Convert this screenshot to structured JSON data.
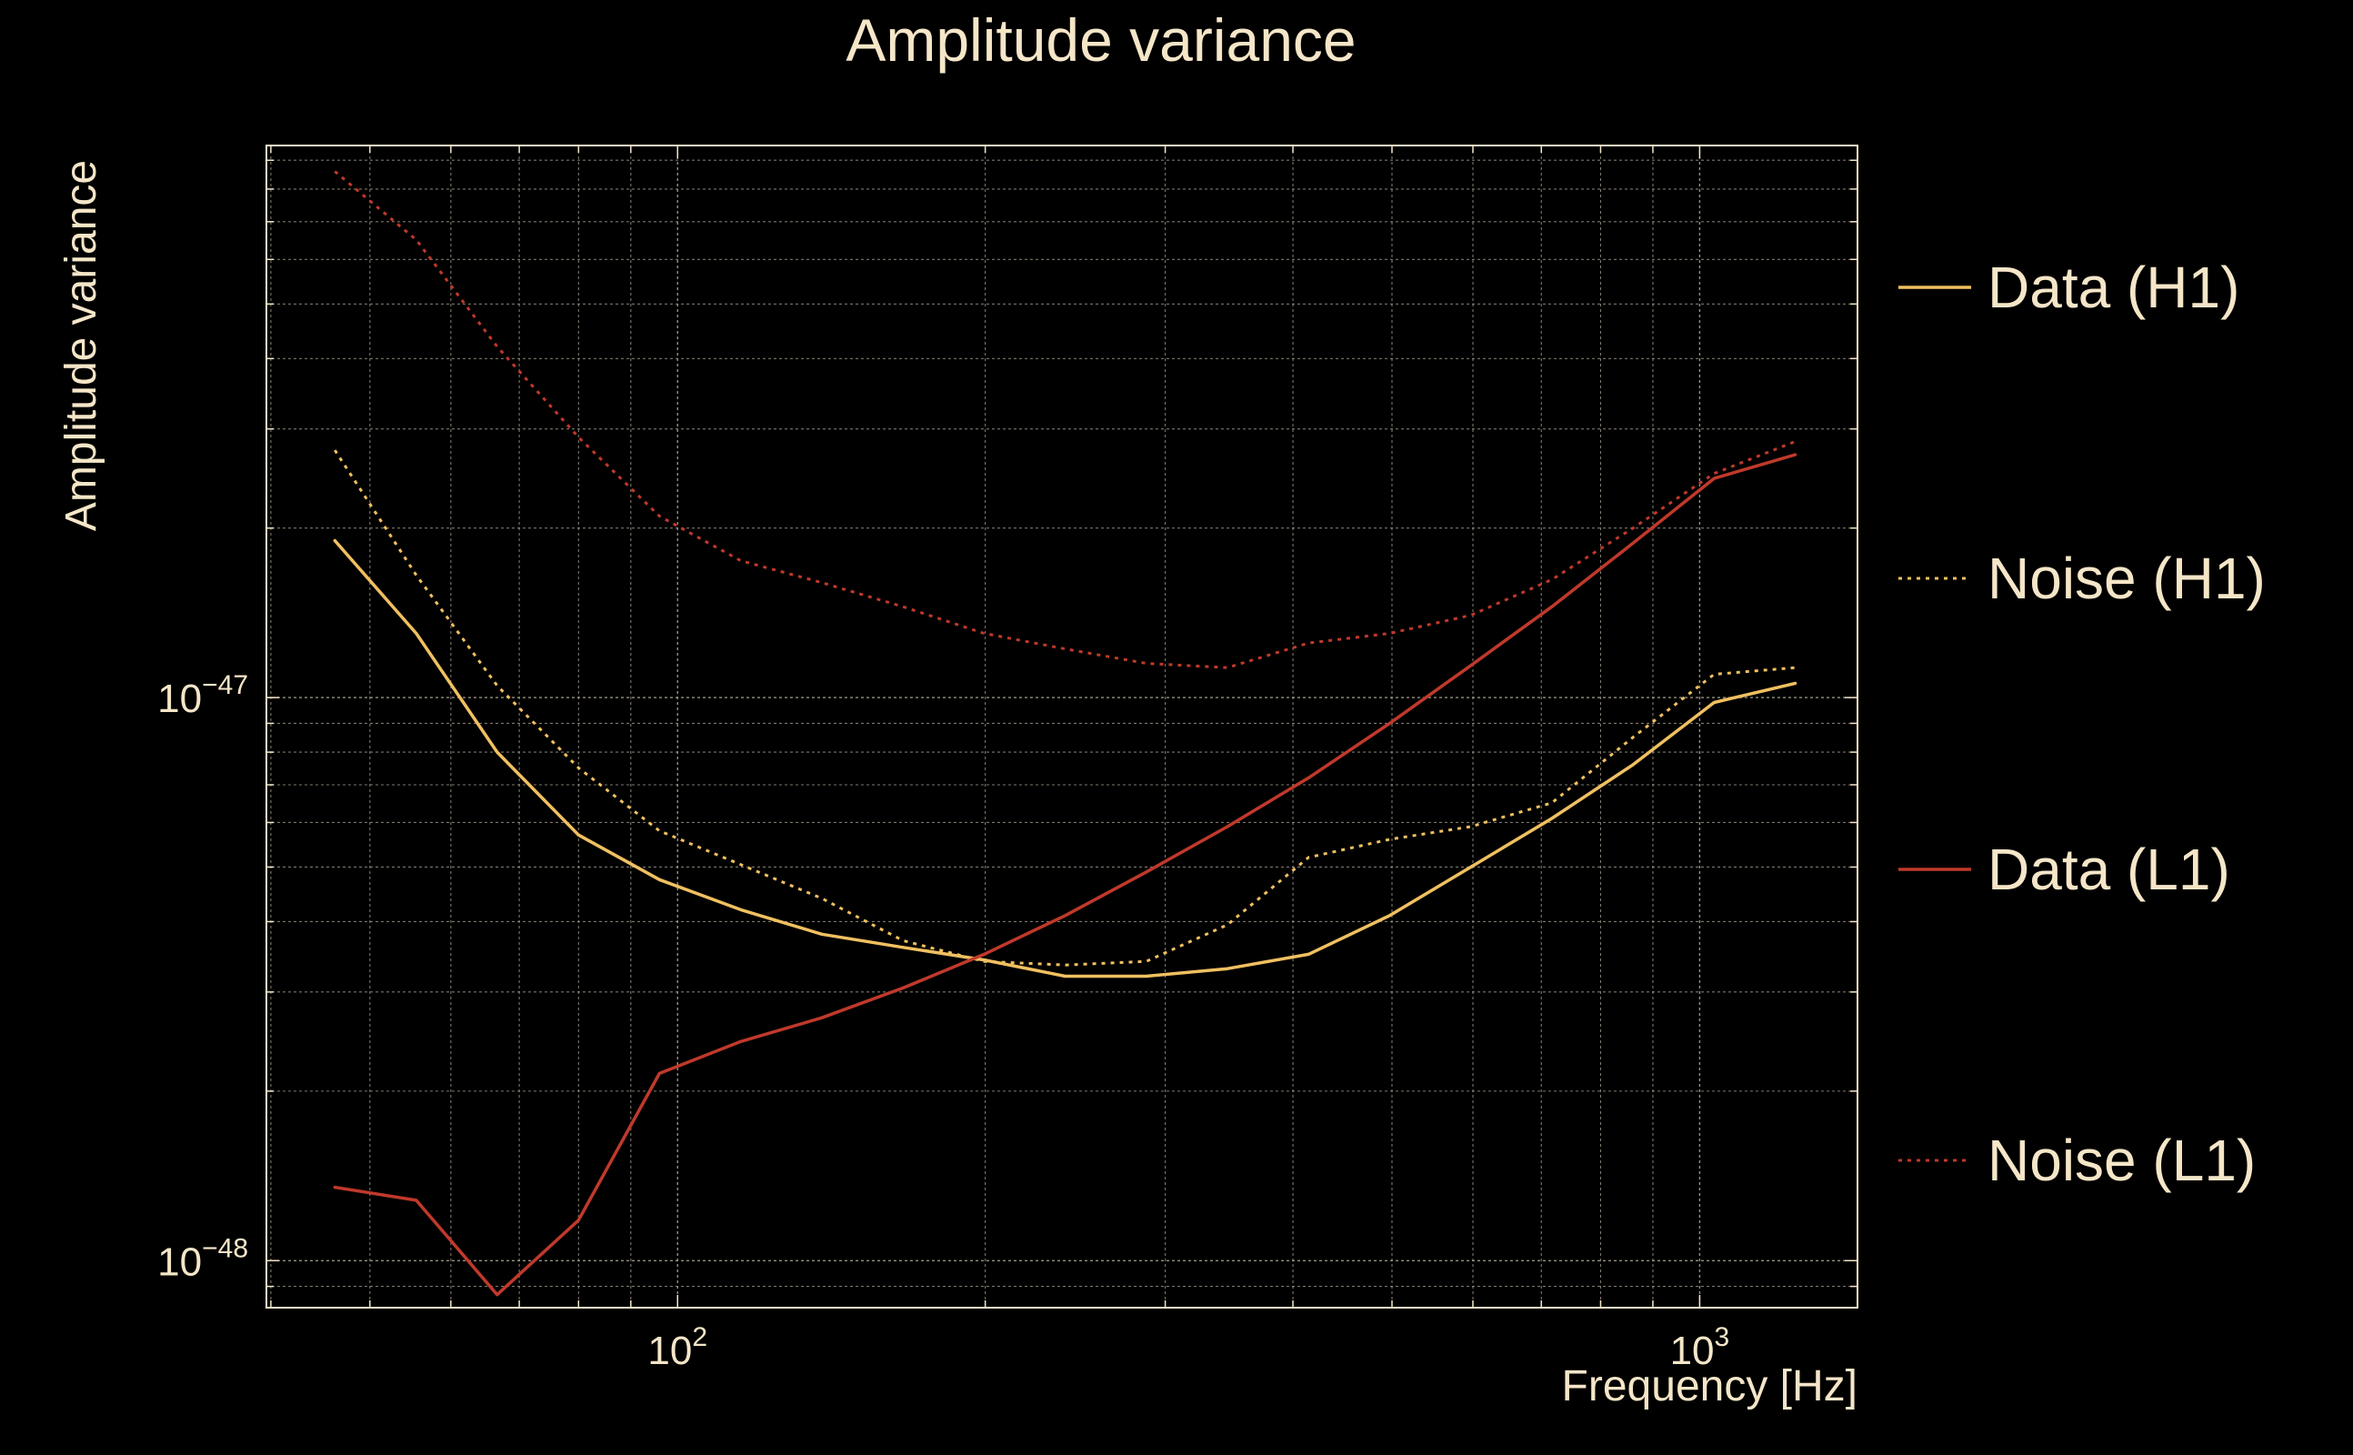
{
  "chart_data": {
    "type": "line",
    "title": "Amplitude variance",
    "xlabel": "Frequency [Hz]",
    "ylabel": "Amplitude variance",
    "x_scale": "log",
    "y_scale": "log",
    "xlim": [
      39.6,
      1427
    ],
    "ylim": [
      8.25e-49,
      9.56e-47
    ],
    "x_ticks": [
      {
        "value": 100,
        "mantissa": "10",
        "exponent": "2"
      },
      {
        "value": 1000,
        "mantissa": "10",
        "exponent": "3"
      }
    ],
    "y_ticks": [
      {
        "value": 1e-48,
        "mantissa": "10",
        "exponent": "−48"
      },
      {
        "value": 1e-47,
        "mantissa": "10",
        "exponent": "−47"
      }
    ],
    "grid": true,
    "legend_position": "right",
    "colors": {
      "background": "#000000",
      "text": "#f5e6c8",
      "grid": "#a8a090",
      "h1": "#f0c060",
      "l1": "#c0392b"
    },
    "x": [
      46.2,
      55.5,
      66.6,
      80.0,
      96.0,
      115.3,
      138.4,
      166.2,
      199.5,
      239.5,
      287.5,
      345.1,
      414.3,
      497.4,
      597.1,
      716.8,
      860.5,
      1033.0,
      1240.1
    ],
    "series": [
      {
        "name": "Data (H1)",
        "style": "solid",
        "color_key": "h1",
        "values": [
          1.9e-47,
          1.3e-47,
          8e-48,
          5.7e-48,
          4.75e-48,
          4.2e-48,
          3.8e-48,
          3.6e-48,
          3.42e-48,
          3.2e-48,
          3.2e-48,
          3.3e-48,
          3.5e-48,
          4.1e-48,
          5e-48,
          6.1e-48,
          7.6e-48,
          9.8e-48,
          1.06e-47
        ]
      },
      {
        "name": "Noise (H1)",
        "style": "dotted",
        "color_key": "h1",
        "values": [
          2.75e-47,
          1.65e-47,
          1.05e-47,
          7.5e-48,
          5.8e-48,
          5.05e-48,
          4.4e-48,
          3.7e-48,
          3.4e-48,
          3.35e-48,
          3.4e-48,
          3.95e-48,
          5.2e-48,
          5.6e-48,
          5.9e-48,
          6.5e-48,
          8.5e-48,
          1.1e-47,
          1.13e-47
        ]
      },
      {
        "name": "Data (L1)",
        "style": "solid",
        "color_key": "l1",
        "values": [
          1.35e-48,
          1.28e-48,
          8.7e-49,
          1.18e-48,
          2.15e-48,
          2.45e-48,
          2.7e-48,
          3.05e-48,
          3.5e-48,
          4.1e-48,
          4.9e-48,
          5.9e-48,
          7.2e-48,
          9e-48,
          1.14e-47,
          1.45e-47,
          1.88e-47,
          2.45e-47,
          2.7e-47
        ]
      },
      {
        "name": "Noise (L1)",
        "style": "dotted",
        "color_key": "l1",
        "values": [
          8.6e-47,
          6.5e-47,
          4.2e-47,
          2.9e-47,
          2.1e-47,
          1.75e-47,
          1.6e-47,
          1.45e-47,
          1.3e-47,
          1.22e-47,
          1.15e-47,
          1.13e-47,
          1.25e-47,
          1.3e-47,
          1.4e-47,
          1.62e-47,
          2e-47,
          2.5e-47,
          2.85e-47
        ]
      }
    ]
  }
}
